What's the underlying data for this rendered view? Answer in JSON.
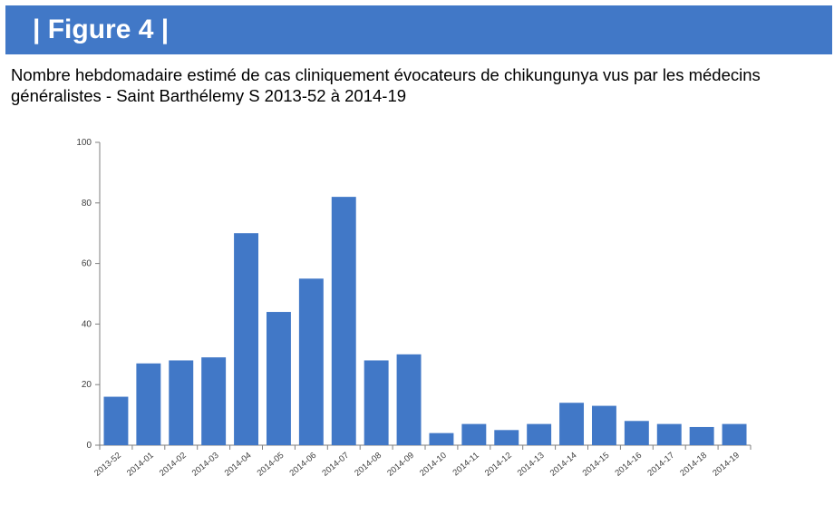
{
  "header": {
    "title": "| Figure 4 |"
  },
  "subtitle_line1": "Nombre hebdomadaire estimé de cas cliniquement évocateurs de chikungunya vus par les médecins",
  "subtitle_line2": "généralistes - Saint Barthélemy  S 2013-52 à 2014-19",
  "colors": {
    "header_bg": "#4178c7",
    "bar": "#4178c7",
    "axis": "#7f7f7f"
  },
  "chart_data": {
    "type": "bar",
    "categories": [
      "2013-52",
      "2014-01",
      "2014-02",
      "2014-03",
      "2014-04",
      "2014-05",
      "2014-06",
      "2014-07",
      "2014-08",
      "2014-09",
      "2014-10",
      "2014-11",
      "2014-12",
      "2014-13",
      "2014-14",
      "2014-15",
      "2014-16",
      "2014-17",
      "2014-18",
      "2014-19"
    ],
    "values": [
      16,
      27,
      28,
      29,
      70,
      44,
      55,
      82,
      28,
      30,
      4,
      7,
      5,
      7,
      14,
      13,
      8,
      7,
      6,
      7
    ],
    "ylim": [
      0,
      100
    ],
    "yticks": [
      0,
      20,
      40,
      60,
      80,
      100
    ],
    "grid": false,
    "legend": "none"
  }
}
